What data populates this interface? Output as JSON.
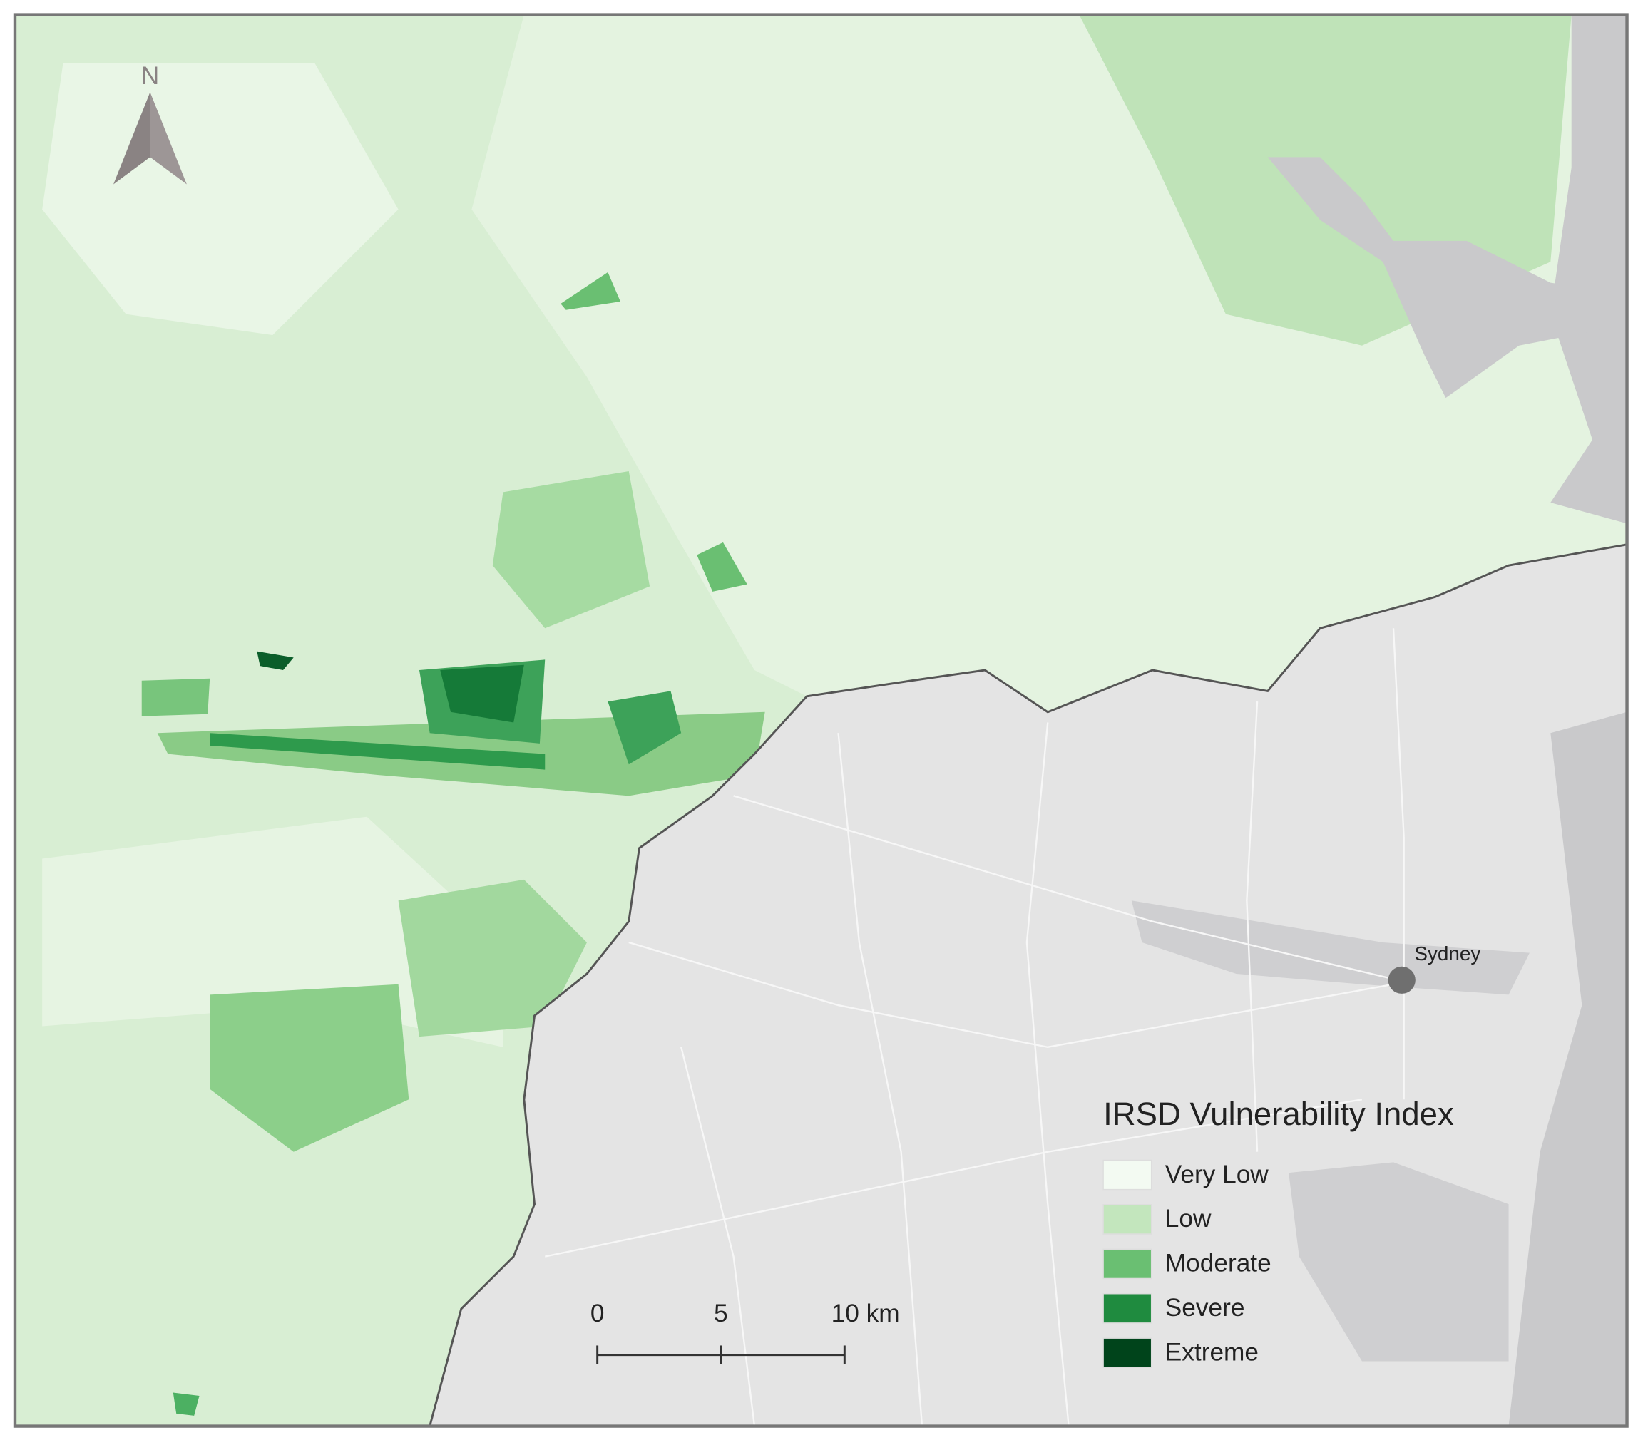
{
  "map": {
    "north_label": "N",
    "city": {
      "name": "Sydney"
    },
    "legend": {
      "title": "IRSD Vulnerability Index",
      "items": [
        {
          "label": "Very Low",
          "color": "#f3faf2"
        },
        {
          "label": "Low",
          "color": "#c3e6bd"
        },
        {
          "label": "Moderate",
          "color": "#6abf72"
        },
        {
          "label": "Severe",
          "color": "#1f8b3f"
        },
        {
          "label": "Extreme",
          "color": "#00441b"
        }
      ]
    },
    "scale_bar": {
      "ticks": [
        0,
        5,
        {
          "value": 10,
          "label": "10 km"
        }
      ]
    }
  }
}
